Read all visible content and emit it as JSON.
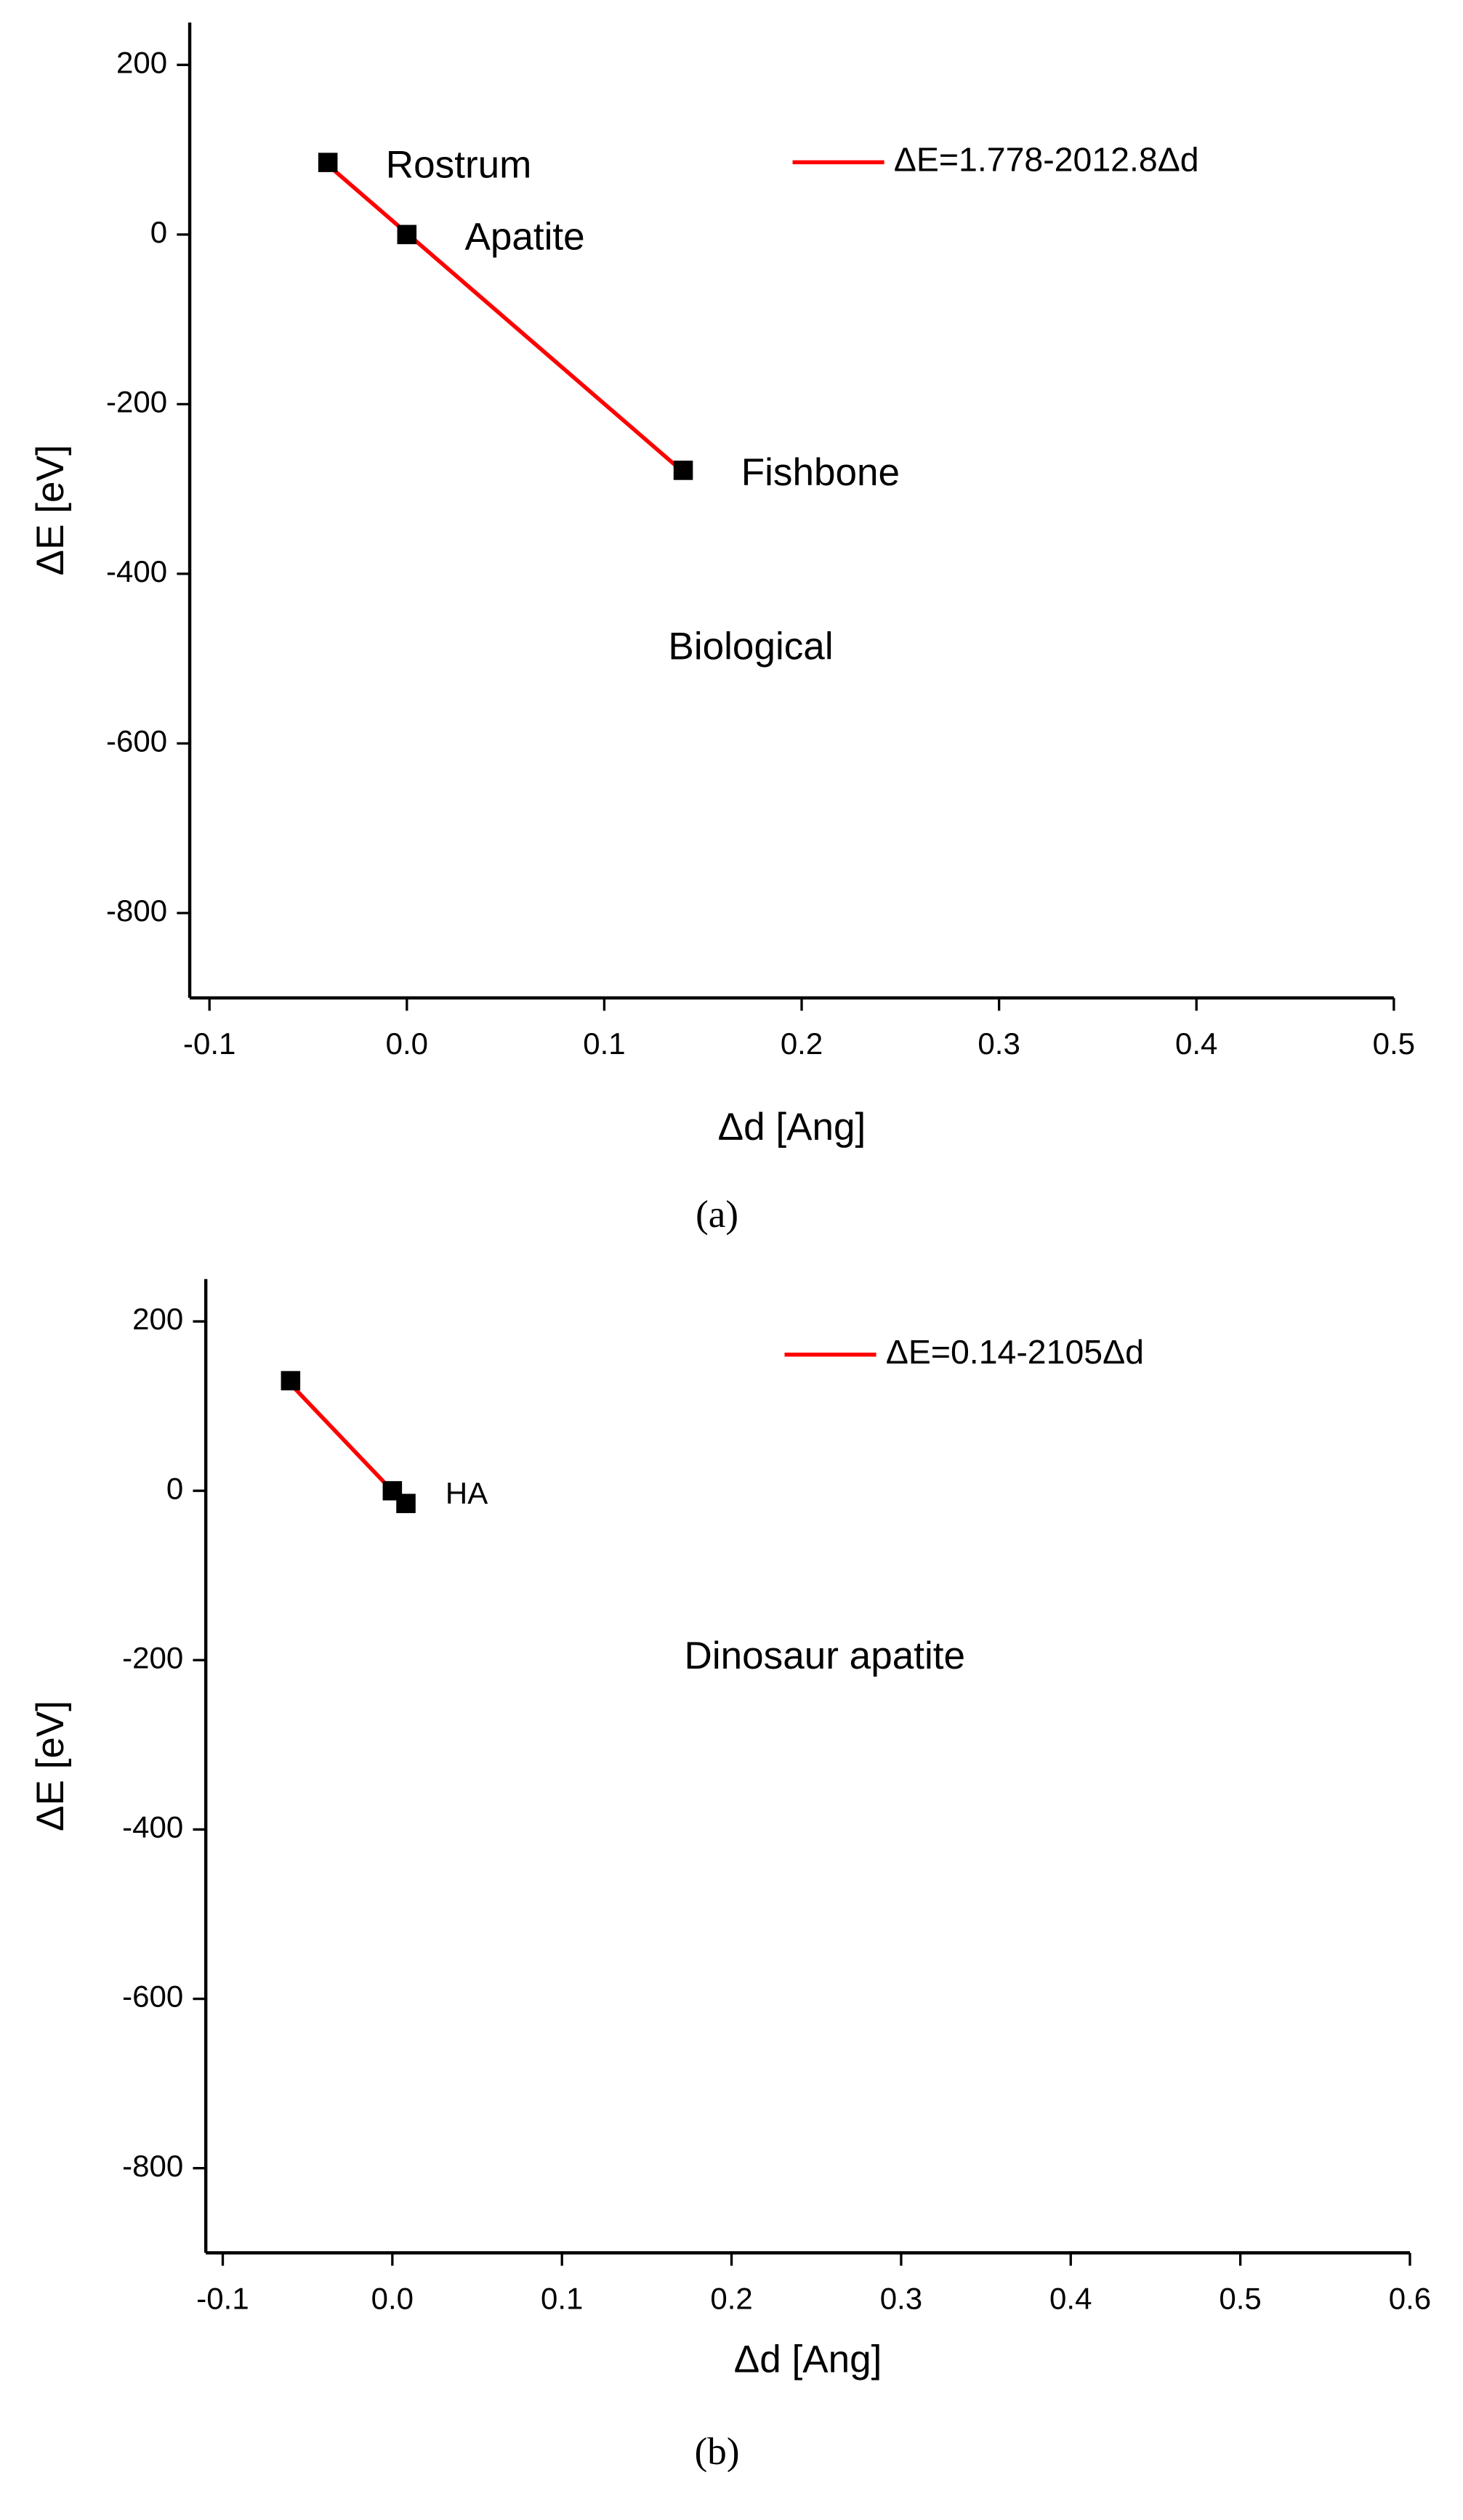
{
  "chart_data": [
    {
      "type": "scatter",
      "xlabel": "Δd [Ang]",
      "ylabel": "ΔE [eV]",
      "annotation": "Biological",
      "caption": "(a)",
      "xlim": [
        -0.11,
        0.5
      ],
      "ylim": [
        -900,
        250
      ],
      "xticks": [
        -0.1,
        {
          "value": 0,
          "label": "0.0"
        },
        0.1,
        0.2,
        0.3,
        0.4,
        0.5
      ],
      "yticks": [
        200,
        0,
        -200,
        -400,
        -600,
        -800
      ],
      "legend": "upper right",
      "series": [
        {
          "type": "scatter",
          "color": "#000000",
          "x": [
            -0.04,
            0,
            0.14
          ],
          "values": [
            85,
            0,
            -278
          ],
          "point_labels": [
            "Rostrum",
            "Apatite",
            "Fishbone"
          ]
        },
        {
          "type": "line",
          "name": "ΔE=1.778-2012.8Δd",
          "color": "#ff0000",
          "x": [
            -0.04,
            0.14
          ],
          "values": [
            82,
            -280
          ]
        }
      ]
    },
    {
      "type": "scatter",
      "xlabel": "Δd [Ang]",
      "ylabel": "ΔE [eV]",
      "annotation": "Dinosaur apatite",
      "caption": "(b)",
      "xlim": [
        -0.11,
        0.6
      ],
      "ylim": [
        -900,
        250
      ],
      "xticks": [
        -0.1,
        {
          "value": 0,
          "label": "0.0"
        },
        0.1,
        0.2,
        0.3,
        0.4,
        0.5,
        0.6
      ],
      "yticks": [
        200,
        0,
        -200,
        -400,
        -600,
        -800
      ],
      "legend": "upper right",
      "series": [
        {
          "type": "scatter",
          "color": "#000000",
          "x": [
            -0.06,
            0,
            0.008
          ],
          "values": [
            130,
            0,
            -15
          ],
          "point_labels": [
            null,
            "HA",
            null
          ]
        },
        {
          "type": "line",
          "name": "ΔE=0.14-2105Δd",
          "color": "#ff0000",
          "x": [
            -0.06,
            0.008
          ],
          "values": [
            126,
            -17
          ]
        }
      ]
    }
  ]
}
